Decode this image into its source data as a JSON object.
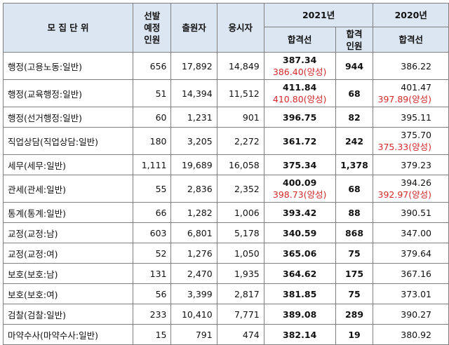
{
  "header": {
    "unit": "모 집 단 위",
    "planned": [
      "선발",
      "예정",
      "인원"
    ],
    "applicants": "출원자",
    "takers": "응시자",
    "year2021": "2021년",
    "year2020": "2020년",
    "cutoff2021": "합격선",
    "passers": [
      "합격",
      "인원"
    ],
    "cutoff2020": "합격선"
  },
  "rows": [
    {
      "unit": "행정(고용노동:일반)",
      "planned": "656",
      "applicants": "17,892",
      "takers": "14,849",
      "cutoff2021": "387.34",
      "cutoff2021_extra": "386.40(양성)",
      "passers": "944",
      "cutoff2020": "386.22",
      "cutoff2020_extra": ""
    },
    {
      "unit": "행정(교육행정:일반)",
      "planned": "51",
      "applicants": "14,394",
      "takers": "11,512",
      "cutoff2021": "411.84",
      "cutoff2021_extra": "410.80(양성)",
      "passers": "68",
      "cutoff2020": "401.47",
      "cutoff2020_extra": "397.89(양성)"
    },
    {
      "unit": "행정(선거행정:일반)",
      "planned": "60",
      "applicants": "1,231",
      "takers": "901",
      "cutoff2021": "396.75",
      "cutoff2021_extra": "",
      "passers": "82",
      "cutoff2020": "395.11",
      "cutoff2020_extra": ""
    },
    {
      "unit": "직업상담(직업상담:일반)",
      "planned": "180",
      "applicants": "3,205",
      "takers": "2,272",
      "cutoff2021": "361.72",
      "cutoff2021_extra": "",
      "passers": "242",
      "cutoff2020": "375.70",
      "cutoff2020_extra": "375.33(양성)"
    },
    {
      "unit": "세무(세무:일반)",
      "planned": "1,111",
      "applicants": "19,689",
      "takers": "16,058",
      "cutoff2021": "375.34",
      "cutoff2021_extra": "",
      "passers": "1,378",
      "cutoff2020": "379.23",
      "cutoff2020_extra": ""
    },
    {
      "unit": "관세(관세:일반)",
      "planned": "55",
      "applicants": "2,836",
      "takers": "2,352",
      "cutoff2021": "400.09",
      "cutoff2021_extra": "398.73(양성)",
      "passers": "68",
      "cutoff2020": "394.26",
      "cutoff2020_extra": "392.97(양성)"
    },
    {
      "unit": "통계(통계:일반)",
      "planned": "66",
      "applicants": "1,282",
      "takers": "1,006",
      "cutoff2021": "393.42",
      "cutoff2021_extra": "",
      "passers": "88",
      "cutoff2020": "390.51",
      "cutoff2020_extra": ""
    },
    {
      "unit": "교정(교정:남)",
      "planned": "603",
      "applicants": "6,801",
      "takers": "5,178",
      "cutoff2021": "340.59",
      "cutoff2021_extra": "",
      "passers": "868",
      "cutoff2020": "347.00",
      "cutoff2020_extra": ""
    },
    {
      "unit": "교정(교정:여)",
      "planned": "52",
      "applicants": "1,276",
      "takers": "1,050",
      "cutoff2021": "365.06",
      "cutoff2021_extra": "",
      "passers": "75",
      "cutoff2020": "379.64",
      "cutoff2020_extra": ""
    },
    {
      "unit": "보호(보호:남)",
      "planned": "131",
      "applicants": "2,470",
      "takers": "1,935",
      "cutoff2021": "364.62",
      "cutoff2021_extra": "",
      "passers": "175",
      "cutoff2020": "367.16",
      "cutoff2020_extra": ""
    },
    {
      "unit": "보호(보호:여)",
      "planned": "56",
      "applicants": "3,399",
      "takers": "2,817",
      "cutoff2021": "381.85",
      "cutoff2021_extra": "",
      "passers": "75",
      "cutoff2020": "373.01",
      "cutoff2020_extra": ""
    },
    {
      "unit": "검찰(검찰:일반)",
      "planned": "233",
      "applicants": "10,410",
      "takers": "7,771",
      "cutoff2021": "389.08",
      "cutoff2021_extra": "",
      "passers": "289",
      "cutoff2020": "390.27",
      "cutoff2020_extra": ""
    },
    {
      "unit": "마약수사(마약수사:일반)",
      "planned": "15",
      "applicants": "791",
      "takers": "474",
      "cutoff2021": "382.14",
      "cutoff2021_extra": "",
      "passers": "19",
      "cutoff2020": "380.92",
      "cutoff2020_extra": ""
    }
  ],
  "colors": {
    "header_bg": "#dce6f2",
    "border": "#7f7f7f",
    "red_note": "#d4282b"
  }
}
